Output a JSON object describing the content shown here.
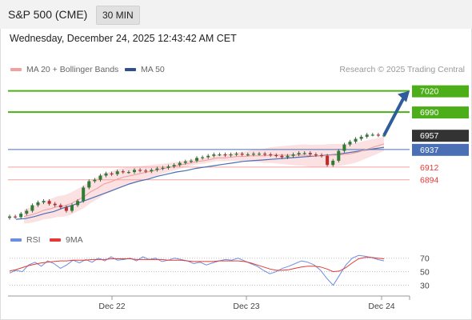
{
  "header": {
    "title": "S&P 500 (CME)",
    "timeframe": "30 MIN"
  },
  "timestamp": "Wednesday, December 24, 2025 12:43:42 AM CET",
  "legend": {
    "ma_bb": "MA 20 + Bollinger Bands",
    "ma50": "MA 50",
    "rsi": "RSI",
    "rsi_ma": "9MA"
  },
  "credit": "Research © 2025 Trading Central",
  "colors": {
    "up_candle": "#2e7d32",
    "down_candle": "#c62828",
    "bollinger": "#f8c8c8",
    "ma20": "#ef9a9a",
    "ma50": "#4a6fb5",
    "target_line": "#4caf1a",
    "support_line": "#f4a0a0",
    "pivot_label": "#333333",
    "arrow": "#2f5d9a",
    "rsi": "#6c8ee0",
    "rsi_ma": "#e53935"
  },
  "chart_data": [
    {
      "type": "candlestick",
      "ylim": [
        6820,
        7040
      ],
      "x_ticks": [
        "Dec 22",
        "Dec 23",
        "Dec 24"
      ],
      "series": [
        {
          "name": "MA 20 + Bollinger Bands",
          "indicator": "ma20"
        },
        {
          "name": "MA 50",
          "indicator": "ma50"
        }
      ],
      "levels": [
        {
          "value": 7020,
          "label": "7020",
          "kind": "target",
          "text_color": "#ffffff"
        },
        {
          "value": 6990,
          "label": "6990",
          "kind": "target",
          "text_color": "#ffffff"
        },
        {
          "value": 6957,
          "label": "6957",
          "kind": "last",
          "text_color": "#ffffff"
        },
        {
          "value": 6937,
          "label": "6937",
          "kind": "pivot",
          "text_color": "#ffffff"
        },
        {
          "value": 6912,
          "label": "6912",
          "kind": "support",
          "text_color": "#e53935"
        },
        {
          "value": 6894,
          "label": "6894",
          "kind": "support",
          "text_color": "#e53935"
        }
      ],
      "arrow": {
        "from_value": 6957,
        "to_value": 7020
      },
      "closes": [
        6842,
        6841,
        6846,
        6850,
        6858,
        6862,
        6864,
        6860,
        6858,
        6855,
        6850,
        6858,
        6864,
        6883,
        6892,
        6894,
        6900,
        6903,
        6902,
        6906,
        6905,
        6905,
        6908,
        6907,
        6906,
        6908,
        6910,
        6911,
        6913,
        6915,
        6918,
        6920,
        6921,
        6925,
        6926,
        6928,
        6930,
        6930,
        6929,
        6930,
        6931,
        6930,
        6930,
        6931,
        6931,
        6930,
        6929,
        6928,
        6926,
        6928,
        6930,
        6932,
        6932,
        6930,
        6929,
        6928,
        6915,
        6921,
        6935,
        6944,
        6948,
        6952,
        6955,
        6958,
        6958,
        6957,
        6957
      ],
      "ma20": [
        6842,
        6844,
        6847,
        6851,
        6853,
        6856,
        6857,
        6860,
        6865,
        6870,
        6877,
        6882,
        6888,
        6891,
        6895,
        6898,
        6900,
        6902,
        6904,
        6906,
        6908,
        6910,
        6912,
        6914,
        6916,
        6918,
        6920,
        6921,
        6923,
        6925,
        6925,
        6926,
        6927,
        6927,
        6928,
        6928,
        6928,
        6929,
        6929,
        6929,
        6929,
        6929,
        6929,
        6928,
        6928,
        6928,
        6929,
        6929,
        6930,
        6931,
        6933,
        6936,
        6939,
        6942,
        6945
      ],
      "ma50": [
        6838,
        6839,
        6842,
        6846,
        6849,
        6854,
        6858,
        6863,
        6868,
        6873,
        6878,
        6883,
        6888,
        6892,
        6895,
        6899,
        6902,
        6905,
        6907,
        6910,
        6912,
        6914,
        6916,
        6918,
        6920,
        6921,
        6922,
        6923,
        6924,
        6925,
        6926,
        6927,
        6928,
        6929,
        6930,
        6932,
        6934,
        6936,
        6938,
        6940
      ]
    },
    {
      "type": "line",
      "ylim": [
        20,
        85
      ],
      "y_ticks": [
        70,
        50,
        30
      ],
      "series": [
        {
          "name": "RSI",
          "values": [
            48,
            52,
            50,
            60,
            64,
            58,
            66,
            62,
            55,
            60,
            67,
            63,
            68,
            64,
            70,
            66,
            72,
            67,
            68,
            70,
            66,
            72,
            68,
            70,
            65,
            67,
            70,
            68,
            66,
            62,
            64,
            60,
            63,
            66,
            68,
            67,
            70,
            66,
            62,
            58,
            52,
            47,
            50,
            55,
            58,
            62,
            66,
            64,
            60,
            52,
            40,
            30,
            45,
            60,
            70,
            74,
            73,
            71,
            68,
            66
          ]
        },
        {
          "name": "9MA",
          "values": [
            51,
            53,
            56,
            59,
            61,
            63,
            64,
            65,
            66,
            66,
            67,
            67,
            67,
            68,
            68,
            68,
            69,
            69,
            69,
            69,
            68,
            68,
            68,
            68,
            68,
            67,
            67,
            67,
            66,
            65,
            65,
            65,
            65,
            66,
            66,
            66,
            66,
            65,
            63,
            60,
            57,
            54,
            52,
            52,
            53,
            55,
            57,
            58,
            58,
            57,
            54,
            50,
            51,
            56,
            63,
            69,
            71,
            71,
            70,
            69
          ]
        }
      ]
    }
  ]
}
